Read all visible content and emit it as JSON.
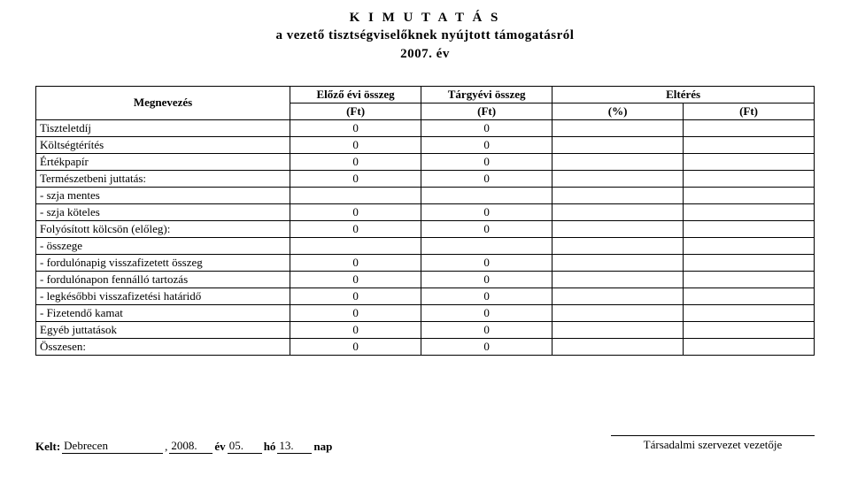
{
  "title": {
    "line1": "K I M U T A T Á S",
    "line2": "a vezető tisztségviselőknek nyújtott támogatásról",
    "line3": "2007. év"
  },
  "headers": {
    "megnevezes": "Megnevezés",
    "elozo": "Előző évi összeg",
    "targy": "Tárgyévi összeg",
    "elteres": "Eltérés",
    "ft": "(Ft)",
    "pct": "(%)"
  },
  "rows": [
    {
      "label": "Tiszteletdíj",
      "v1": "0",
      "v2": "0",
      "v3": "",
      "v4": ""
    },
    {
      "label": "Költségtérítés",
      "v1": "0",
      "v2": "0",
      "v3": "",
      "v4": ""
    },
    {
      "label": "Értékpapír",
      "v1": "0",
      "v2": "0",
      "v3": "",
      "v4": ""
    },
    {
      "label": "Természetbeni juttatás:",
      "v1": "0",
      "v2": "0",
      "v3": "",
      "v4": ""
    },
    {
      "label": "- szja mentes",
      "v1": "",
      "v2": "",
      "v3": "",
      "v4": ""
    },
    {
      "label": "- szja köteles",
      "v1": "0",
      "v2": "0",
      "v3": "",
      "v4": ""
    },
    {
      "label": "Folyósított kölcsön (előleg):",
      "v1": "0",
      "v2": "0",
      "v3": "",
      "v4": ""
    },
    {
      "label": "- összege",
      "v1": "",
      "v2": "",
      "v3": "",
      "v4": ""
    },
    {
      "label": "- fordulónapig visszafizetett összeg",
      "v1": "0",
      "v2": "0",
      "v3": "",
      "v4": ""
    },
    {
      "label": "- fordulónapon fennálló tartozás",
      "v1": "0",
      "v2": "0",
      "v3": "",
      "v4": ""
    },
    {
      "label": "- legkésőbbi visszafizetési határidő",
      "v1": "0",
      "v2": "0",
      "v3": "",
      "v4": ""
    },
    {
      "label": "- Fizetendő kamat",
      "v1": "0",
      "v2": "0",
      "v3": "",
      "v4": ""
    },
    {
      "label": "Egyéb juttatások",
      "v1": "0",
      "v2": "0",
      "v3": "",
      "v4": ""
    },
    {
      "label": "Összesen:",
      "v1": "0",
      "v2": "0",
      "v3": "",
      "v4": ""
    }
  ],
  "footer": {
    "kelt": "Kelt:",
    "city": "Debrecen",
    "comma": ", ",
    "year": "2008.",
    "ev": "év",
    "month": "05.",
    "ho": "hó",
    "day": "13.",
    "nap": "nap",
    "sign": "Társadalmi szervezet vezetője"
  },
  "style": {
    "font_family": "Times New Roman",
    "title_fontsize": 15,
    "body_fontsize": 13,
    "text_color": "#000000",
    "background_color": "#ffffff",
    "border_color": "#000000"
  }
}
